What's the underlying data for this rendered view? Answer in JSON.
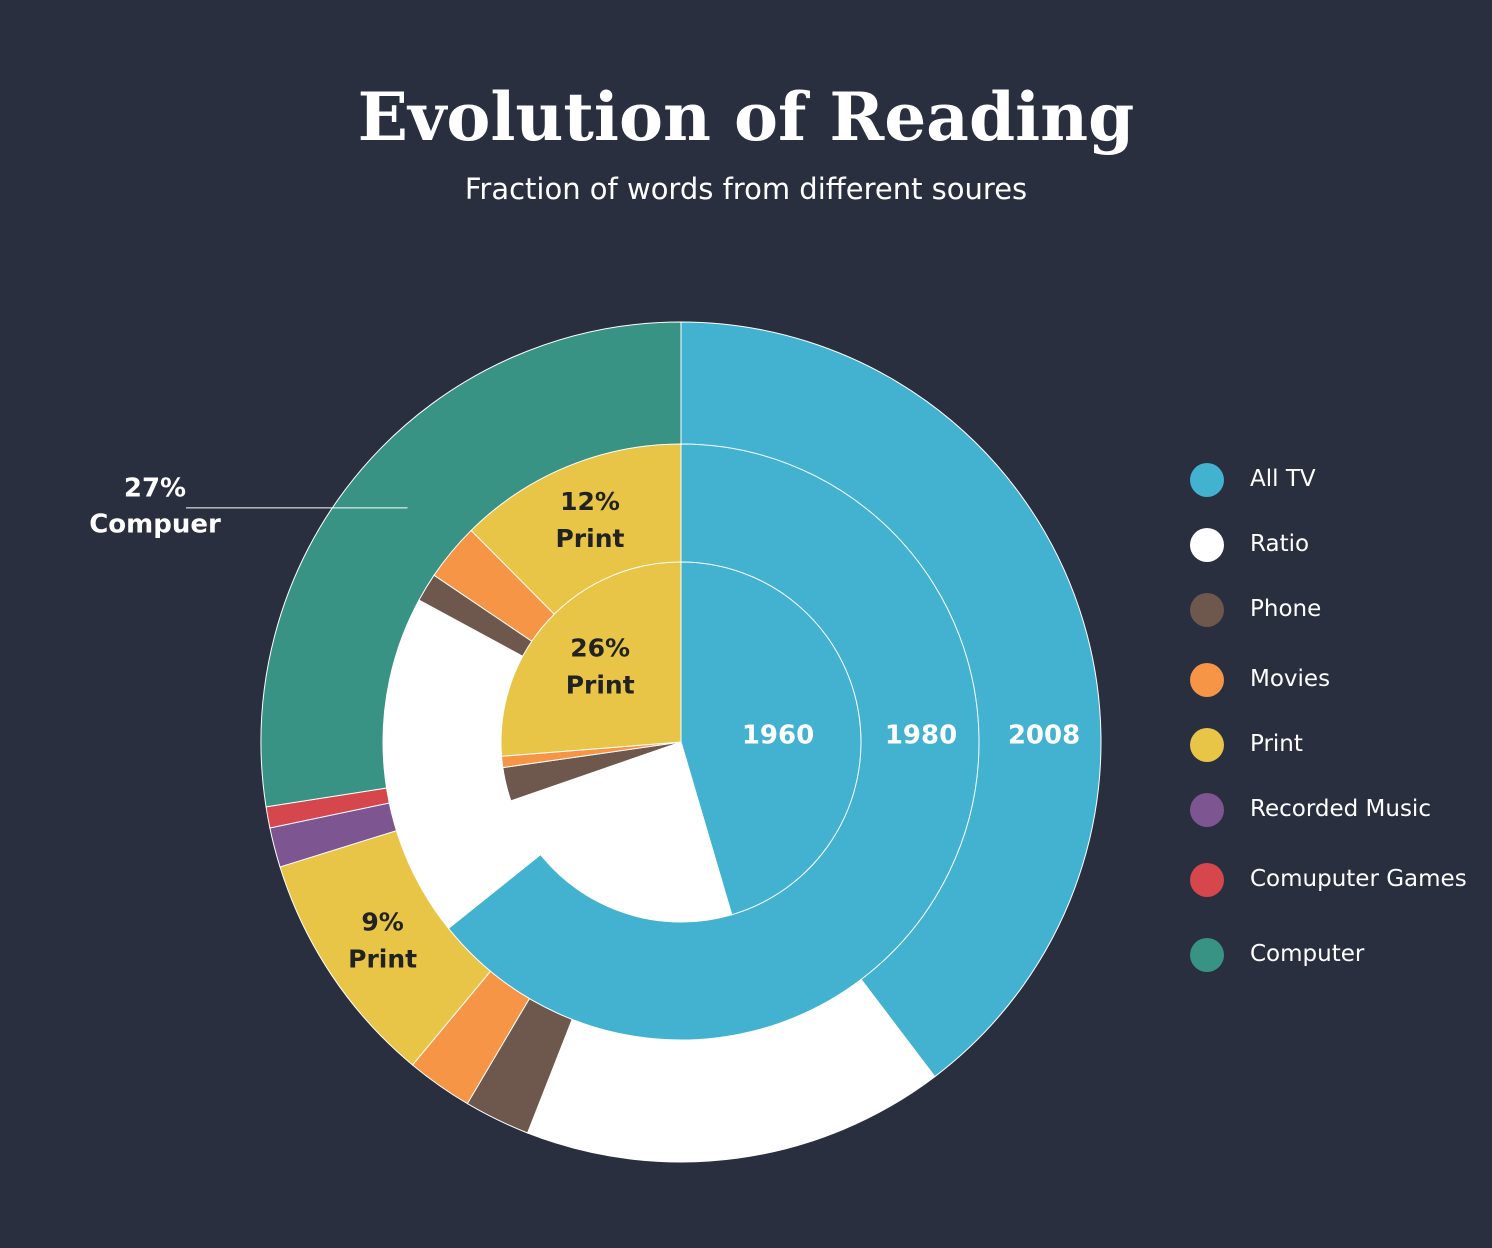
{
  "title": "Evolution of Reading",
  "subtitle": "Fraction of words from different soures",
  "chart_data": {
    "type": "pie",
    "style": "multi-ring donut",
    "title": "Evolution of Reading",
    "subtitle": "Fraction of words from different soures",
    "categories": [
      "All TV",
      "Ratio",
      "Phone",
      "Movies",
      "Print",
      "Recorded Music",
      "Comuputer Games",
      "Computer"
    ],
    "colors": {
      "All TV": "#43b2d1",
      "Ratio": "#ffffff",
      "Phone": "#6e574c",
      "Movies": "#f59545",
      "Print": "#e8c547",
      "Recorded Music": "#7d5590",
      "Comuputer Games": "#d6464d",
      "Computer": "#399384"
    },
    "rings": [
      {
        "label": "1960",
        "values": {
          "All TV": 45,
          "Ratio": 24,
          "Phone": 3,
          "Movies": 1,
          "Print": 26,
          "Recorded Music": 0,
          "Comuputer Games": 0,
          "Computer": 0
        }
      },
      {
        "label": "1980",
        "values": {
          "All TV": 62,
          "Ratio": 18,
          "Phone": 1.5,
          "Movies": 3,
          "Print": 12,
          "Recorded Music": 0,
          "Comuputer Games": 0,
          "Computer": 0
        }
      },
      {
        "label": "2008",
        "values": {
          "All TV": 39,
          "Ratio": 16,
          "Phone": 2.5,
          "Movies": 2.5,
          "Print": 9,
          "Recorded Music": 1.5,
          "Comuputer Games": 0.8,
          "Computer": 27
        }
      }
    ],
    "annotations": [
      {
        "ring": "1960",
        "series": "Print",
        "pct": "26%",
        "text": "Print"
      },
      {
        "ring": "1980",
        "series": "Print",
        "pct": "12%",
        "text": "Print"
      },
      {
        "ring": "2008",
        "series": "Print",
        "pct": "9%",
        "text": "Print"
      },
      {
        "ring": "2008",
        "series": "Computer",
        "pct": "27%",
        "text": "Compuer",
        "callout": true
      }
    ],
    "legend_position": "right"
  }
}
